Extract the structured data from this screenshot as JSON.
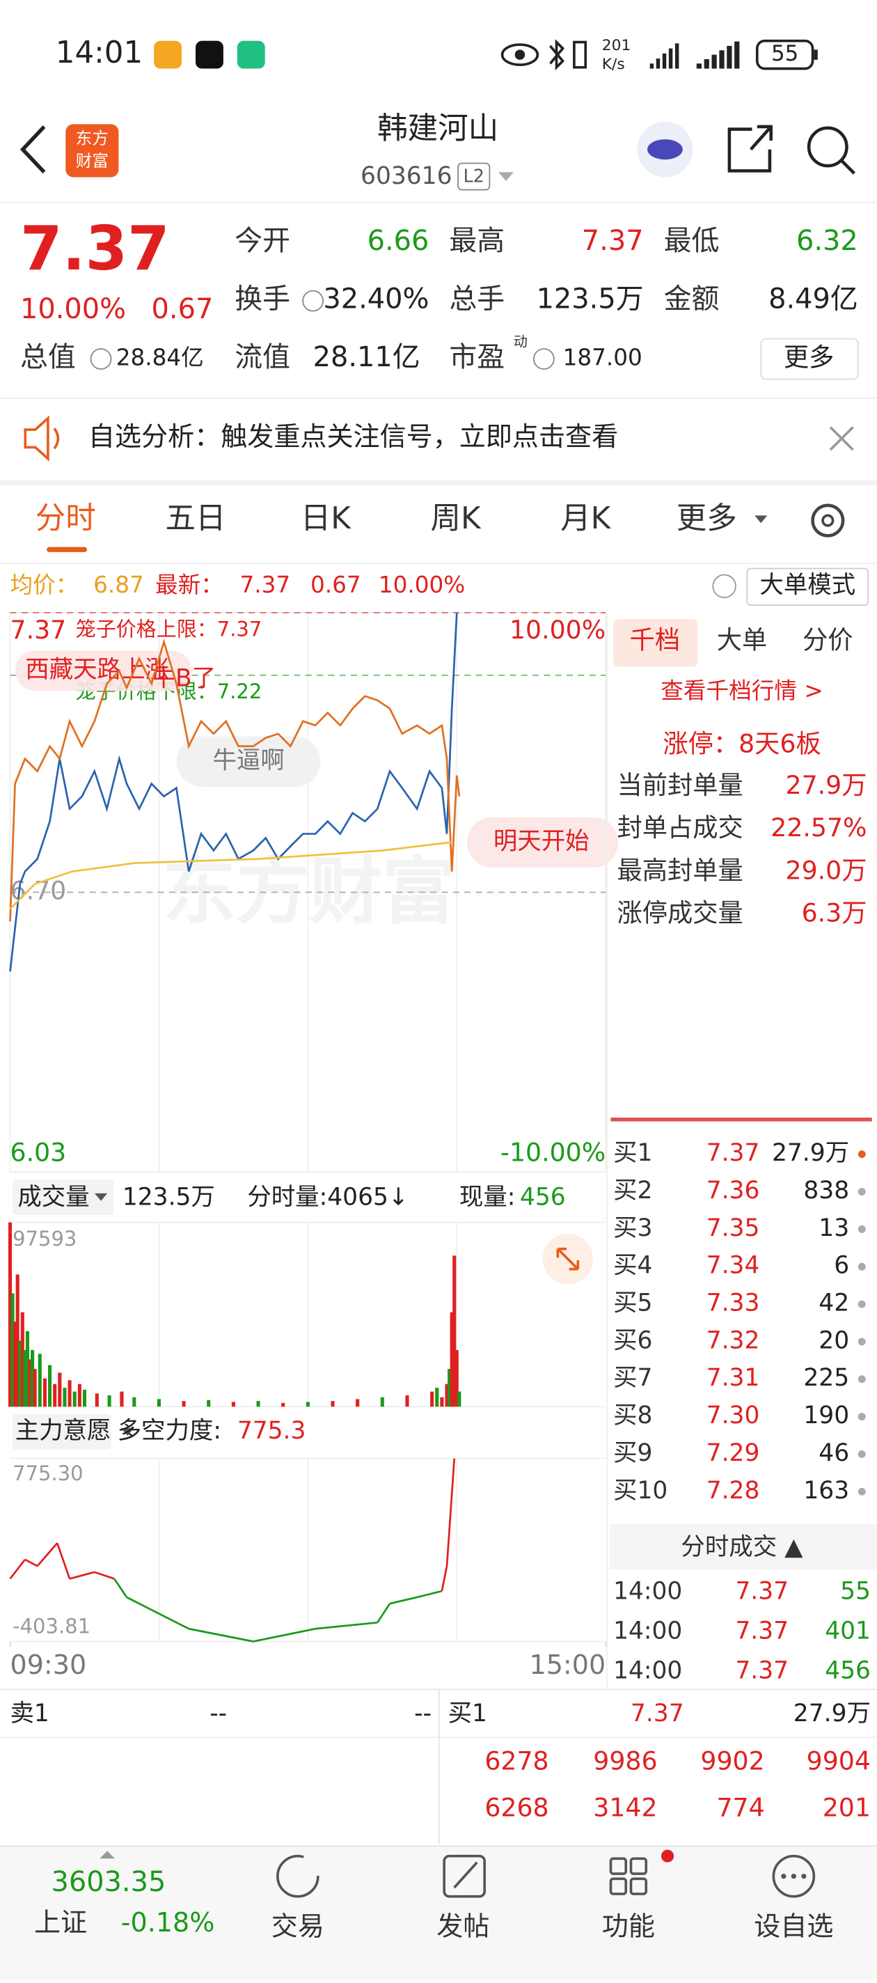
{
  "status_bar": {
    "time": "14:01",
    "net_speed": "201",
    "net_unit": "K/s",
    "battery": "55"
  },
  "header": {
    "logo": [
      "东方",
      "财富"
    ],
    "title": "韩建河山",
    "code": "603616",
    "badge": "L2"
  },
  "quote": {
    "price": "7.37",
    "change_pct": "10.00%",
    "change": "0.67",
    "fields": [
      {
        "label": "今开",
        "value": "6.66",
        "color": "#1a9a1a"
      },
      {
        "label": "最高",
        "value": "7.37",
        "color": "#e02020"
      },
      {
        "label": "最低",
        "value": "6.32",
        "color": "#1a9a1a"
      },
      {
        "label": "换手",
        "value": "32.40%",
        "color": "#222"
      },
      {
        "label": "总手",
        "value": "123.5万",
        "color": "#222"
      },
      {
        "label": "金额",
        "value": "8.49亿",
        "color": "#222"
      },
      {
        "label": "总值",
        "value": "28.84亿",
        "color": "#222"
      },
      {
        "label": "流值",
        "value": "28.11亿",
        "color": "#222"
      },
      {
        "label": "市盈",
        "sup": "动",
        "value": "187.00",
        "color": "#222"
      }
    ],
    "more": "更多"
  },
  "banner": {
    "text": "自选分析：触发重点关注信号，立即点击查看"
  },
  "tabs": [
    "分时",
    "五日",
    "日K",
    "周K",
    "月K",
    "更多"
  ],
  "info_bar": {
    "avg_label": "均价：",
    "avg": "6.87",
    "latest_label": "最新：",
    "latest": "7.37",
    "change": "0.67",
    "change_pct": "10.00%",
    "mode": "大单模式"
  },
  "chart_data": [
    {
      "type": "line",
      "xlim": [
        0,
        240
      ],
      "ylim": [
        6.03,
        7.37
      ],
      "yticks": [
        7.37,
        {
          "value": 6.7,
          "label": "6.70"
        },
        6.03
      ],
      "y2lim": [
        -10,
        10
      ],
      "y2ticks": [
        {
          "value": 10,
          "label": "10.00%"
        },
        {
          "value": -10,
          "label": "-10.00%"
        }
      ],
      "xticks": [
        {
          "value": 0,
          "label": "09:30"
        },
        {
          "value": 240,
          "label": "15:00"
        }
      ],
      "xgrid": [
        60,
        120,
        180
      ],
      "series": [
        {
          "color": "#2a63b0",
          "x": [
            0,
            4,
            6,
            11,
            16,
            20,
            24,
            29,
            34,
            39,
            44,
            47,
            52,
            57,
            62,
            67,
            72,
            77,
            82,
            87,
            92,
            98,
            103,
            108,
            113,
            118,
            123,
            128,
            133,
            138,
            143,
            148,
            153,
            158,
            164,
            169,
            174,
            176,
            178,
            180
          ],
          "values": [
            6.51,
            6.72,
            6.75,
            6.78,
            6.87,
            7.02,
            6.9,
            6.93,
            6.99,
            6.9,
            7.02,
            6.96,
            6.9,
            6.96,
            6.93,
            6.95,
            6.75,
            6.84,
            6.8,
            6.84,
            6.78,
            6.8,
            6.83,
            6.78,
            6.81,
            6.84,
            6.84,
            6.87,
            6.84,
            6.89,
            6.87,
            6.9,
            6.99,
            6.95,
            6.9,
            6.99,
            6.95,
            6.84,
            7.14,
            7.37
          ]
        },
        {
          "color": "#e07020",
          "x": [
            0,
            2,
            6,
            11,
            16,
            20,
            24,
            29,
            34,
            39,
            44,
            47,
            52,
            57,
            62,
            67,
            72,
            77,
            82,
            87,
            92,
            98,
            103,
            108,
            113,
            118,
            123,
            128,
            133,
            138,
            143,
            148,
            153,
            158,
            164,
            169,
            174,
            176,
            178,
            180,
            181
          ],
          "values": [
            6.63,
            6.96,
            7.02,
            6.99,
            7.05,
            7.02,
            7.11,
            7.05,
            7.11,
            7.2,
            7.23,
            7.19,
            7.26,
            7.2,
            7.3,
            7.2,
            7.05,
            7.11,
            7.08,
            7.11,
            7.05,
            7.05,
            7.07,
            7.08,
            7.05,
            7.11,
            7.1,
            7.13,
            7.1,
            7.14,
            7.17,
            7.16,
            7.14,
            7.08,
            7.1,
            7.08,
            7.1,
            7.02,
            6.75,
            6.98,
            6.93
          ]
        },
        {
          "color": "#f0c040",
          "x": [
            0,
            10,
            25,
            50,
            100,
            150,
            178
          ],
          "values": [
            6.66,
            6.72,
            6.75,
            6.77,
            6.78,
            6.8,
            6.82
          ]
        }
      ],
      "annotations": [
        {
          "text": "笼子价格上限：7.37",
          "value": 7.37,
          "color": "#e02020"
        },
        {
          "text": "笼子价格下限：7.22",
          "value": 7.22,
          "color": "#1a9a1a"
        }
      ],
      "comments": [
        "西藏天路上涨",
        "牛B了",
        "牛逼啊",
        "明天开始"
      ],
      "watermark": "东方财富"
    },
    {
      "type": "bar",
      "title": "成交量",
      "total": "123.5万",
      "minute_volume": "分时量:4065↓",
      "now_label": "现量:",
      "now": "456",
      "xlim": [
        0,
        240
      ],
      "ylim": [
        0,
        97593
      ],
      "yticks": [
        97593
      ],
      "x": [
        0,
        1,
        2,
        3,
        4,
        5,
        6,
        7,
        8,
        9,
        10,
        12,
        14,
        16,
        18,
        20,
        22,
        24,
        26,
        28,
        30,
        35,
        40,
        45,
        50,
        60,
        70,
        80,
        90,
        100,
        110,
        120,
        130,
        140,
        150,
        160,
        170,
        172,
        174,
        176,
        177,
        178,
        179,
        180,
        181
      ],
      "values": [
        97593,
        60000,
        45000,
        70000,
        35000,
        50000,
        30000,
        40000,
        25000,
        30000,
        20000,
        28000,
        15000,
        22000,
        12000,
        18000,
        10000,
        14000,
        8000,
        12000,
        9000,
        7000,
        6000,
        8000,
        5000,
        4000,
        3000,
        3500,
        2500,
        3000,
        2000,
        2500,
        3000,
        4000,
        5000,
        6000,
        8000,
        10000,
        5000,
        12000,
        20000,
        50000,
        80000,
        30000,
        8000
      ],
      "colors": [
        "#e02020",
        "#1a9a1a",
        "#e02020",
        "#e02020",
        "#1a9a1a",
        "#e02020",
        "#1a9a1a",
        "#1a9a1a",
        "#e02020",
        "#1a9a1a",
        "#e02020",
        "#1a9a1a",
        "#e02020",
        "#1a9a1a",
        "#e02020",
        "#e02020",
        "#1a9a1a",
        "#e02020",
        "#1a9a1a",
        "#e02020",
        "#1a9a1a",
        "#e02020",
        "#1a9a1a",
        "#e02020",
        "#1a9a1a",
        "#1a9a1a",
        "#e02020",
        "#1a9a1a",
        "#e02020",
        "#1a9a1a",
        "#e02020",
        "#1a9a1a",
        "#e02020",
        "#e02020",
        "#1a9a1a",
        "#e02020",
        "#e02020",
        "#1a9a1a",
        "#e02020",
        "#e02020",
        "#1a9a1a",
        "#e02020",
        "#e02020",
        "#e02020",
        "#1a9a1a"
      ]
    },
    {
      "type": "line",
      "title": "主力意愿",
      "metric_label": "多空力度:",
      "metric": "775.3",
      "xlim": [
        0,
        240
      ],
      "ylim": [
        -403.81,
        775.3
      ],
      "yticks": [
        {
          "value": 775.3,
          "label": "775.30"
        },
        -403.81
      ],
      "x": [
        0,
        6,
        11,
        19,
        24,
        34,
        42,
        47,
        62,
        72,
        98,
        123,
        148,
        153,
        164,
        174,
        176,
        179
      ],
      "values": [
        0,
        124,
        82,
        230,
        0,
        43,
        0,
        -119,
        -241,
        -322,
        -403.81,
        -322,
        -282,
        -160,
        -119,
        -79,
        82,
        775.3
      ],
      "up_color": "#e02020",
      "down_color": "#1a9a1a"
    }
  ],
  "panel": {
    "tabs": [
      "千档",
      "大单",
      "分价"
    ],
    "link": "查看千档行情 >",
    "limit_up": "涨停：8天6板",
    "stats": [
      {
        "label": "当前封单量",
        "value": "27.9万"
      },
      {
        "label": "封单占成交",
        "value": "22.57%"
      },
      {
        "label": "最高封单量",
        "value": "29.0万"
      },
      {
        "label": "涨停成交量",
        "value": "6.3万"
      }
    ],
    "book": [
      {
        "label": "买1",
        "price": "7.37",
        "volume": "27.9万"
      },
      {
        "label": "买2",
        "price": "7.36",
        "volume": "838"
      },
      {
        "label": "买3",
        "price": "7.35",
        "volume": "13"
      },
      {
        "label": "买4",
        "price": "7.34",
        "volume": "6"
      },
      {
        "label": "买5",
        "price": "7.33",
        "volume": "42"
      },
      {
        "label": "买6",
        "price": "7.32",
        "volume": "20"
      },
      {
        "label": "买7",
        "price": "7.31",
        "volume": "225"
      },
      {
        "label": "买8",
        "price": "7.30",
        "volume": "190"
      },
      {
        "label": "买9",
        "price": "7.29",
        "volume": "46"
      },
      {
        "label": "买10",
        "price": "7.28",
        "volume": "163"
      }
    ],
    "trades_title": "分时成交 ▲",
    "trades": [
      [
        "14:00",
        "7.37",
        "55"
      ],
      [
        "14:00",
        "7.37",
        "401"
      ],
      [
        "14:00",
        "7.37",
        "456"
      ]
    ]
  },
  "bottom_quote": {
    "sell_label": "卖1",
    "sell_price": "--",
    "sell_volume": "--",
    "buy_label": "买1",
    "buy_price": "7.37",
    "buy_volume": "27.9万",
    "rows": [
      [
        "6278",
        "9986",
        "9902",
        "9904"
      ],
      [
        "6268",
        "3142",
        "774",
        "201"
      ]
    ]
  },
  "nav": {
    "index_value": "3603.35",
    "index_name": "上证",
    "index_change": "-0.18%",
    "items": [
      "交易",
      "发帖",
      "功能",
      "设自选"
    ]
  }
}
